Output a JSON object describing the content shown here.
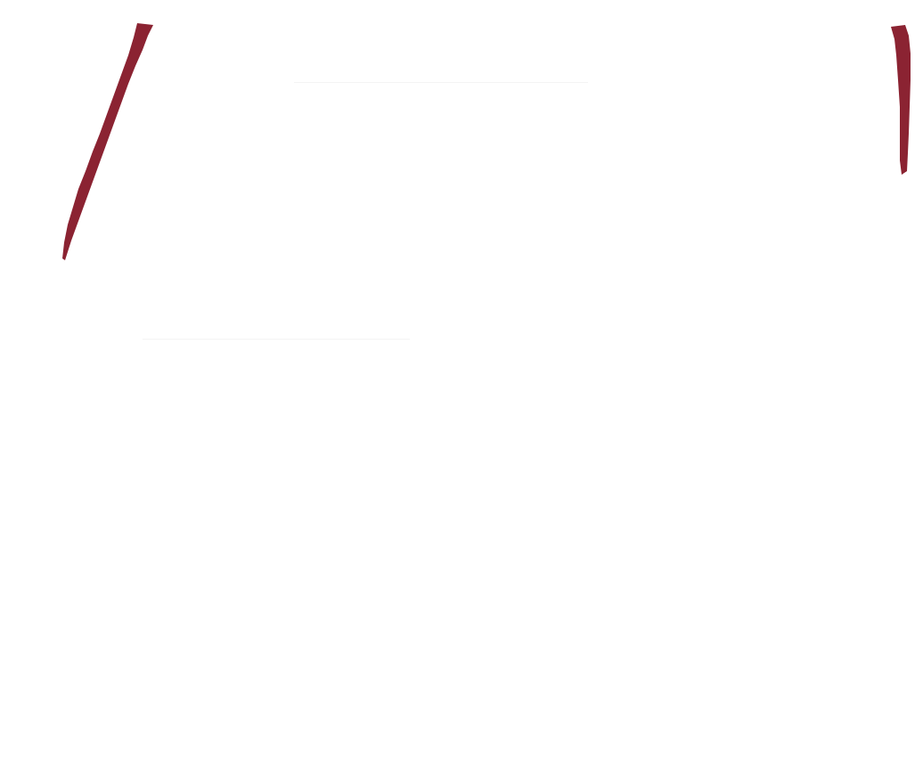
{
  "page": {
    "background": "#ffffff"
  },
  "strokes": {
    "color": "#8b2332",
    "items": [
      {
        "name": "left-brush-stroke"
      },
      {
        "name": "right-brush-stroke"
      }
    ]
  }
}
